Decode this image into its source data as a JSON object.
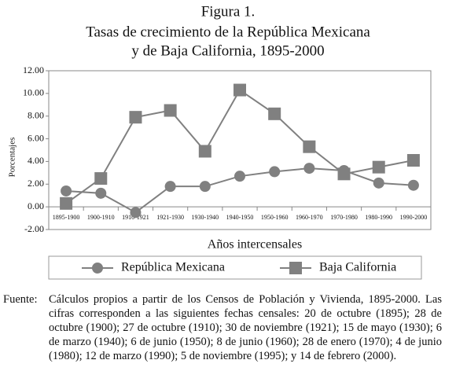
{
  "chart_data": {
    "type": "line",
    "title": "Figura 1.",
    "subtitle": [
      "Tasas de crecimiento de la República Mexicana",
      "y de Baja California, 1895-2000"
    ],
    "x_label": "Años intercensales",
    "y_label": "Porcentajes",
    "categories": [
      "1895-1900",
      "1900-1910",
      "1910-1921",
      "1921-1930",
      "1930-1940",
      "1940-1950",
      "1950-1960",
      "1960-1970",
      "1970-1980",
      "1980-1990",
      "1990-2000"
    ],
    "series": [
      {
        "name": "República Mexicana",
        "color": "#808080",
        "marker": "circle",
        "values": [
          1.4,
          1.2,
          -0.5,
          1.8,
          1.8,
          2.7,
          3.1,
          3.4,
          3.2,
          2.1,
          1.9
        ]
      },
      {
        "name": "Baja California",
        "color": "#808080",
        "marker": "square",
        "values": [
          0.3,
          2.5,
          7.9,
          8.5,
          4.9,
          10.3,
          8.2,
          5.3,
          2.9,
          3.5,
          4.1
        ]
      }
    ],
    "ylim": [
      -2,
      12
    ],
    "yticks": [
      {
        "value": -2,
        "label": "-2.00"
      },
      {
        "value": 0,
        "label": "0.00"
      },
      {
        "value": 2,
        "label": "2.00"
      },
      {
        "value": 4,
        "label": "4.00"
      },
      {
        "value": 6,
        "label": "6.00"
      },
      {
        "value": 8,
        "label": "8.00"
      },
      {
        "value": 10,
        "label": "10.00"
      },
      {
        "value": 12,
        "label": "12.00"
      }
    ],
    "legend": "bottom",
    "source_label": "Fuente:",
    "source": "Cálculos propios a partir de los Censos de Población y Vivienda, 1895-2000. Las cifras corresponden a las siguientes fechas censales: 20 de octubre (1895); 28 de octubre (1900); 27 de octubre (1910); 30 de noviembre (1921); 15 de mayo (1930); 6 de marzo (1940); 6 de junio (1950); 8 de junio (1960); 28 de enero (1970); 4 de junio (1980); 12 de marzo (1990); 5 de noviembre (1995); y 14 de febrero (2000)."
  }
}
